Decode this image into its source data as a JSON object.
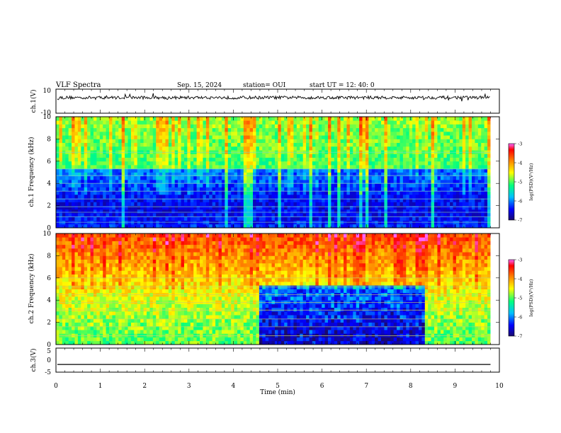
{
  "header": {
    "title": "VLF Spectra",
    "date": "Sep. 15, 2024",
    "station": "station= OUI",
    "start": "start UT = 12: 40: 0"
  },
  "chart_data": [
    {
      "type": "line",
      "name": "ch1-waveform",
      "ylabel": "ch.1(V)",
      "ylim": [
        -10,
        10
      ],
      "yticks": [
        "10",
        "-10"
      ],
      "description_level": 3
    },
    {
      "type": "heatmap",
      "name": "ch1-spectrogram",
      "ylabel": "ch.1 Frequency (kHz)",
      "ylim": [
        0,
        10
      ],
      "yticks": [
        "0",
        "2",
        "4",
        "6",
        "8",
        "10"
      ],
      "colorbar": {
        "label": "log(PSD)(V²/Hz)",
        "range": [
          -7,
          -3
        ],
        "ticks": [
          "-3",
          "-4",
          "-5",
          "-6",
          "-7"
        ]
      },
      "low_band_level": -6.3,
      "high_band_level": -4.8
    },
    {
      "type": "heatmap",
      "name": "ch2-spectrogram",
      "ylabel": "ch.2 Frequency (kHz)",
      "ylim": [
        0,
        10
      ],
      "yticks": [
        "0",
        "2",
        "4",
        "6",
        "8",
        "10"
      ],
      "colorbar": {
        "label": "log(PSD)(V²/Hz)",
        "range": [
          -7,
          -3
        ],
        "ticks": [
          "-3",
          "-4",
          "-5",
          "-6",
          "-7"
        ]
      },
      "low_band_level": -5.0,
      "high_band_level": -3.6,
      "quiet_interval_min": [
        4.6,
        8.3
      ]
    },
    {
      "type": "line",
      "name": "ch3-waveform",
      "ylabel": "ch.3(V)",
      "ylim": [
        -5,
        5
      ],
      "yticks": [
        "5",
        "0",
        "-5"
      ],
      "value": -1.8
    }
  ],
  "xaxis": {
    "label": "Time (min)",
    "xlim": [
      0,
      10
    ],
    "ticks": [
      "0",
      "1",
      "2",
      "3",
      "4",
      "5",
      "6",
      "7",
      "8",
      "9",
      "10"
    ],
    "data_end_min": 9.8
  },
  "colors": {
    "palette": [
      "#1a0a6e",
      "#0000ff",
      "#00c0ff",
      "#00ff80",
      "#ffff00",
      "#ff8000",
      "#ff0000",
      "#ff66ff"
    ]
  }
}
